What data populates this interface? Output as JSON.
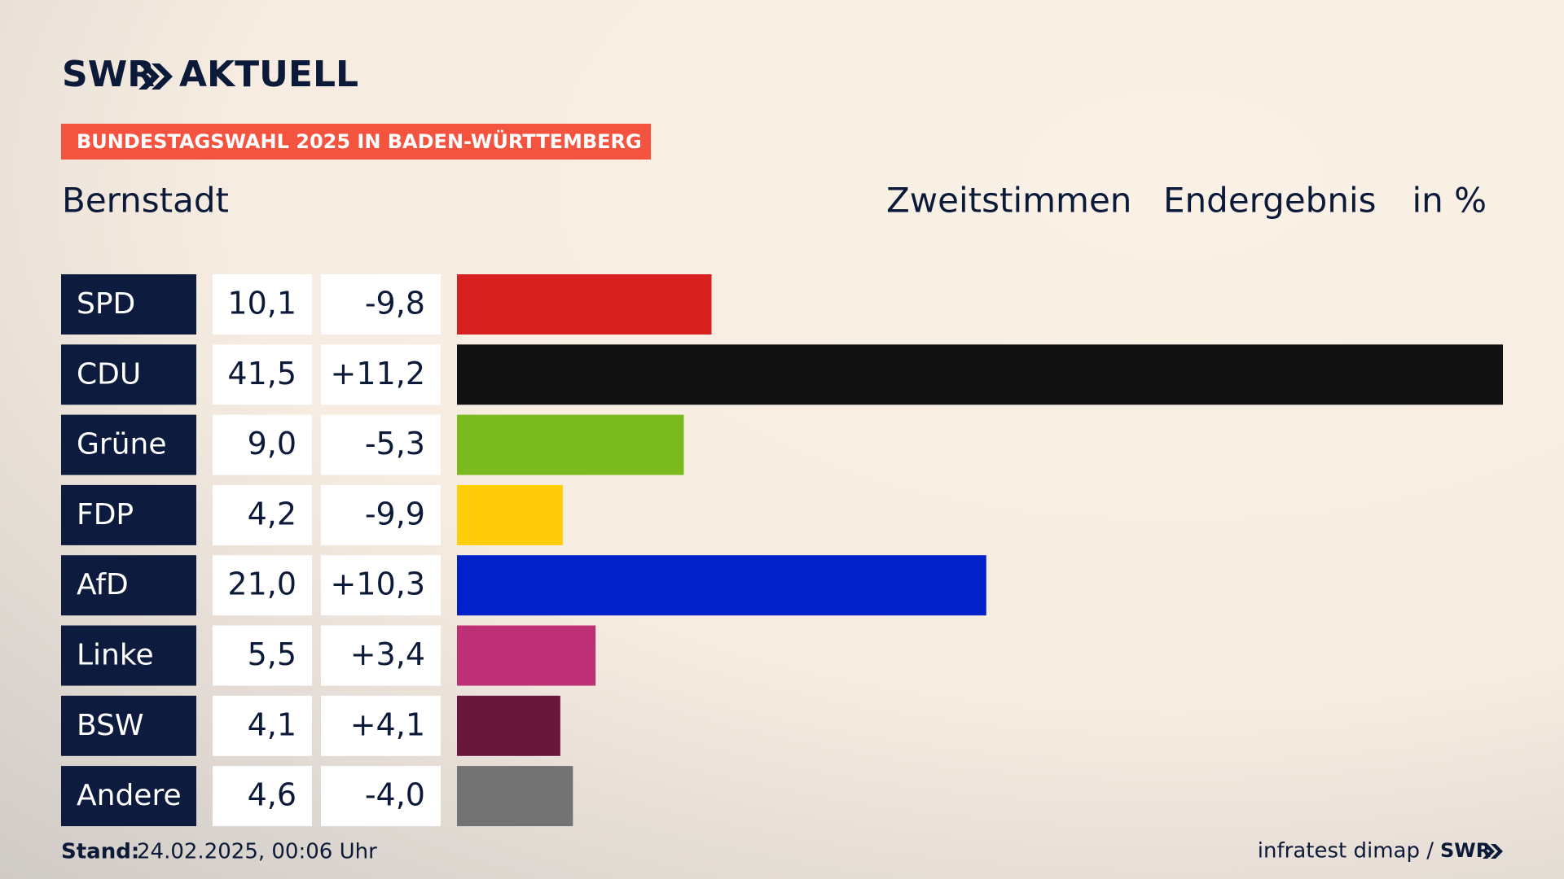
{
  "chart_data": {
    "type": "bar",
    "brand": "SWR",
    "brand_suffix": "AKTUELL",
    "tag": "BUNDESTAGSWAHL 2025 IN BADEN-WÜRTTEMBERG",
    "title": "Bernstadt",
    "subtitle": [
      "Zweitstimmen",
      "Endergebnis",
      "in %"
    ],
    "categories": [
      "SPD",
      "CDU",
      "Grüne",
      "FDP",
      "AfD",
      "Linke",
      "BSW",
      "Andere"
    ],
    "values": [
      10.1,
      41.5,
      9.0,
      4.2,
      21.0,
      5.5,
      4.1,
      4.6
    ],
    "value_labels": [
      "10,1",
      "41,5",
      "9,0",
      "4,2",
      "21,0",
      "5,5",
      "4,1",
      "4,6"
    ],
    "changes": [
      -9.8,
      11.2,
      -5.3,
      -9.9,
      10.3,
      3.4,
      4.1,
      -4.0
    ],
    "change_labels": [
      "-9,8",
      "+11,2",
      "-5,3",
      "-9,9",
      "+10,3",
      "+3,4",
      "+4,1",
      "-4,0"
    ],
    "colors": [
      "#d71f20",
      "#121212",
      "#7aba1e",
      "#ffcd09",
      "#0022c8",
      "#bd3075",
      "#69173b",
      "#737373"
    ],
    "footer_label": "Stand:",
    "footer_date": "24.02.2025, 00:06 Uhr",
    "source": "infratest dimap /",
    "source_brand": "SWR"
  }
}
